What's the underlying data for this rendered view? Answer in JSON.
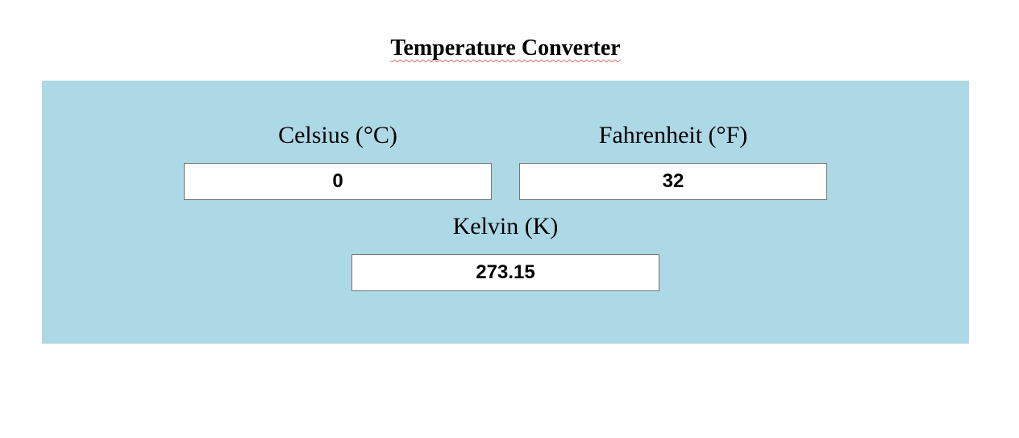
{
  "page": {
    "title": "Temperature Converter"
  },
  "converter": {
    "celsius": {
      "label": "Celsius (°C)",
      "value": "0"
    },
    "fahrenheit": {
      "label": "Fahrenheit (°F)",
      "value": "32"
    },
    "kelvin": {
      "label": "Kelvin (K)",
      "value": "273.15"
    }
  },
  "colors": {
    "panel_background": "#add8e6",
    "spellcheck_underline": "#e06a6a"
  }
}
